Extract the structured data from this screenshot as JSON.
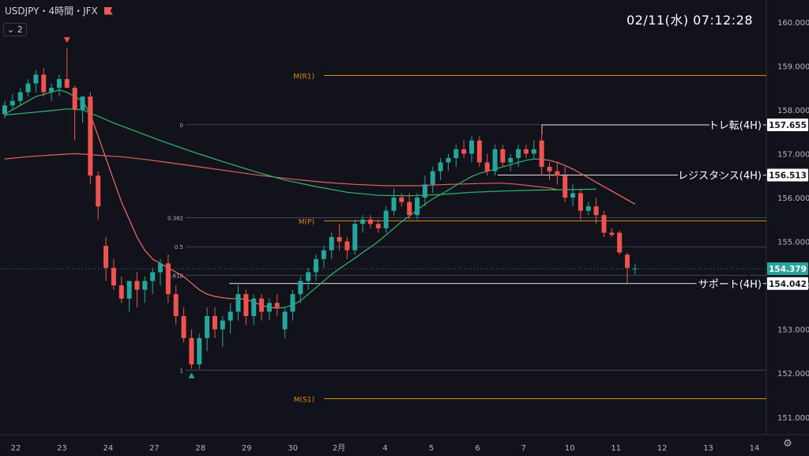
{
  "header": {
    "symbol": "USDJPY・4時間・JFX",
    "indicator_count": "2"
  },
  "clock": {
    "text": "02/11(水)   07:12:28"
  },
  "chart_data": {
    "type": "candlestick",
    "ylim": [
      150.6,
      160.5
    ],
    "y_ticks": [
      151.0,
      152.0,
      153.0,
      154.0,
      155.0,
      156.0,
      157.0,
      158.0,
      159.0,
      160.0
    ],
    "x_labels": [
      "22",
      "23",
      "24",
      "27",
      "28",
      "29",
      "30",
      "2月",
      "4",
      "5",
      "6",
      "7",
      "10",
      "11",
      "12",
      "13",
      "14"
    ],
    "candles": [
      [
        157.9,
        158.2,
        157.8,
        158.1
      ],
      [
        158.1,
        158.35,
        158.0,
        158.2
      ],
      [
        158.2,
        158.5,
        158.1,
        158.4
      ],
      [
        158.4,
        158.7,
        158.3,
        158.6
      ],
      [
        158.6,
        158.9,
        158.4,
        158.8
      ],
      [
        158.8,
        158.95,
        158.3,
        158.4
      ],
      [
        158.4,
        158.6,
        158.2,
        158.5
      ],
      [
        158.5,
        158.8,
        158.3,
        158.7
      ],
      [
        158.7,
        159.4,
        158.5,
        158.5
      ],
      [
        158.5,
        158.55,
        157.3,
        158.0
      ],
      [
        158.0,
        158.3,
        157.7,
        158.3
      ],
      [
        158.3,
        158.4,
        156.3,
        156.5
      ],
      [
        156.5,
        156.6,
        155.5,
        155.8
      ],
      [
        154.9,
        155.1,
        154.1,
        154.4
      ],
      [
        154.4,
        154.6,
        153.9,
        154.0
      ],
      [
        154.0,
        154.2,
        153.6,
        153.7
      ],
      [
        153.7,
        154.1,
        153.4,
        154.1
      ],
      [
        154.1,
        154.3,
        153.5,
        153.9
      ],
      [
        153.9,
        154.2,
        153.6,
        154.1
      ],
      [
        154.1,
        154.4,
        153.8,
        154.3
      ],
      [
        154.3,
        154.6,
        154.0,
        154.5
      ],
      [
        154.5,
        154.7,
        153.6,
        153.8
      ],
      [
        153.8,
        154.0,
        153.1,
        153.3
      ],
      [
        153.3,
        153.5,
        152.7,
        152.8
      ],
      [
        152.8,
        153.0,
        152.1,
        152.2
      ],
      [
        152.2,
        152.9,
        152.1,
        152.8
      ],
      [
        152.8,
        153.5,
        152.5,
        153.3
      ],
      [
        153.3,
        153.5,
        152.8,
        153.0
      ],
      [
        153.0,
        153.3,
        152.6,
        153.2
      ],
      [
        153.2,
        153.6,
        152.9,
        153.4
      ],
      [
        153.4,
        154.0,
        153.2,
        153.8
      ],
      [
        153.8,
        153.9,
        153.1,
        153.3
      ],
      [
        153.3,
        153.8,
        153.1,
        153.7
      ],
      [
        153.7,
        153.8,
        153.2,
        153.4
      ],
      [
        153.4,
        153.7,
        153.2,
        153.6
      ],
      [
        153.6,
        153.8,
        153.3,
        153.5
      ],
      [
        153.0,
        153.5,
        152.8,
        153.4
      ],
      [
        153.4,
        153.9,
        153.2,
        153.8
      ],
      [
        153.8,
        154.2,
        153.6,
        154.1
      ],
      [
        154.1,
        154.4,
        153.9,
        154.3
      ],
      [
        154.3,
        154.7,
        154.1,
        154.6
      ],
      [
        154.6,
        154.9,
        154.4,
        154.8
      ],
      [
        154.8,
        155.2,
        154.6,
        155.1
      ],
      [
        155.1,
        155.4,
        154.8,
        155.0
      ],
      [
        155.0,
        155.1,
        154.6,
        154.8
      ],
      [
        154.8,
        155.5,
        154.7,
        155.4
      ],
      [
        155.4,
        155.6,
        155.2,
        155.5
      ],
      [
        155.5,
        155.6,
        155.3,
        155.4
      ],
      [
        155.4,
        155.5,
        155.2,
        155.3
      ],
      [
        155.3,
        155.8,
        155.2,
        155.7
      ],
      [
        155.7,
        156.2,
        155.6,
        156.0
      ],
      [
        156.0,
        156.1,
        155.8,
        155.9
      ],
      [
        155.9,
        156.1,
        155.5,
        155.6
      ],
      [
        155.6,
        156.1,
        155.5,
        156.0
      ],
      [
        156.0,
        156.5,
        155.8,
        156.3
      ],
      [
        156.3,
        156.7,
        156.1,
        156.6
      ],
      [
        156.6,
        156.9,
        156.4,
        156.8
      ],
      [
        156.8,
        157.0,
        156.6,
        156.9
      ],
      [
        156.9,
        157.2,
        156.7,
        157.1
      ],
      [
        157.1,
        157.3,
        156.9,
        157.0
      ],
      [
        157.0,
        157.4,
        156.8,
        157.3
      ],
      [
        157.3,
        157.4,
        156.7,
        156.8
      ],
      [
        156.8,
        157.0,
        156.5,
        156.6
      ],
      [
        156.6,
        157.2,
        156.5,
        157.1
      ],
      [
        157.1,
        157.2,
        156.7,
        156.8
      ],
      [
        156.8,
        157.0,
        156.6,
        156.9
      ],
      [
        156.9,
        157.2,
        156.7,
        157.1
      ],
      [
        157.1,
        157.2,
        156.9,
        157.0
      ],
      [
        157.0,
        157.3,
        156.9,
        157.1
      ],
      [
        157.3,
        157.6,
        156.5,
        156.7
      ],
      [
        156.7,
        156.8,
        156.4,
        156.6
      ],
      [
        156.6,
        156.8,
        156.3,
        156.5
      ],
      [
        156.5,
        156.7,
        155.9,
        156.0
      ],
      [
        156.0,
        156.3,
        155.8,
        156.1
      ],
      [
        156.1,
        156.2,
        155.5,
        155.7
      ],
      [
        155.7,
        155.9,
        155.6,
        155.8
      ],
      [
        155.8,
        156.0,
        155.4,
        155.6
      ],
      [
        155.6,
        155.7,
        155.1,
        155.2
      ],
      [
        155.2,
        155.3,
        155.1,
        155.15
      ],
      [
        155.2,
        155.25,
        154.7,
        154.75
      ],
      [
        154.7,
        154.75,
        154.05,
        154.4
      ],
      [
        154.38,
        154.5,
        154.25,
        154.38
      ]
    ],
    "ma_short": [
      [
        0,
        157.9
      ],
      [
        1,
        158.0
      ],
      [
        2,
        158.1
      ],
      [
        3,
        158.2
      ],
      [
        4,
        158.3
      ],
      [
        5,
        158.35
      ],
      [
        6,
        158.4
      ],
      [
        7,
        158.45
      ],
      [
        8,
        158.4
      ],
      [
        9,
        158.3
      ],
      [
        10,
        158.2
      ],
      [
        11,
        157.9
      ],
      [
        12,
        157.4
      ],
      [
        13,
        156.9
      ],
      [
        14,
        156.4
      ],
      [
        15,
        155.9
      ],
      [
        16,
        155.5
      ],
      [
        17,
        155.1
      ],
      [
        18,
        154.8
      ],
      [
        19,
        154.6
      ],
      [
        20,
        154.5
      ],
      [
        21,
        154.4
      ],
      [
        22,
        154.3
      ],
      [
        23,
        154.2
      ],
      [
        24,
        154.05
      ],
      [
        25,
        153.9
      ],
      [
        26,
        153.8
      ],
      [
        27,
        153.75
      ],
      [
        28,
        153.72
      ],
      [
        29,
        153.7
      ],
      [
        30,
        153.7
      ],
      [
        31,
        153.68
      ],
      [
        32,
        153.62
      ],
      [
        33,
        153.55
      ],
      [
        34,
        153.5
      ],
      [
        35,
        153.48
      ],
      [
        36,
        153.5
      ],
      [
        37,
        153.55
      ],
      [
        38,
        153.65
      ],
      [
        39,
        153.8
      ],
      [
        40,
        153.95
      ],
      [
        41,
        154.1
      ],
      [
        42,
        154.25
      ],
      [
        43,
        154.38
      ],
      [
        44,
        154.5
      ],
      [
        45,
        154.62
      ],
      [
        46,
        154.75
      ],
      [
        47,
        154.87
      ],
      [
        48,
        155.0
      ],
      [
        49,
        155.15
      ],
      [
        50,
        155.3
      ],
      [
        51,
        155.45
      ],
      [
        52,
        155.58
      ],
      [
        53,
        155.72
      ],
      [
        54,
        155.85
      ],
      [
        55,
        155.97
      ],
      [
        56,
        156.07
      ],
      [
        57,
        156.17
      ],
      [
        58,
        156.28
      ],
      [
        59,
        156.38
      ],
      [
        60,
        156.48
      ],
      [
        61,
        156.55
      ],
      [
        62,
        156.6
      ],
      [
        63,
        156.65
      ],
      [
        64,
        156.7
      ],
      [
        65,
        156.75
      ],
      [
        66,
        156.8
      ],
      [
        67,
        156.85
      ],
      [
        68,
        156.88
      ],
      [
        69,
        156.87
      ],
      [
        70,
        156.85
      ],
      [
        71,
        156.8
      ],
      [
        72,
        156.73
      ],
      [
        73,
        156.65
      ],
      [
        74,
        156.55
      ],
      [
        75,
        156.45
      ],
      [
        76,
        156.35
      ],
      [
        77,
        156.25
      ],
      [
        78,
        156.15
      ],
      [
        79,
        156.05
      ],
      [
        80,
        155.95
      ],
      [
        81,
        155.85
      ]
    ],
    "ma_mid": [
      [
        0,
        157.88
      ],
      [
        3,
        157.93
      ],
      [
        6,
        157.98
      ],
      [
        8,
        158.02
      ],
      [
        10,
        158.0
      ],
      [
        12,
        157.85
      ],
      [
        14,
        157.7
      ],
      [
        17,
        157.5
      ],
      [
        20,
        157.3
      ],
      [
        24,
        157.05
      ],
      [
        28,
        156.82
      ],
      [
        32,
        156.6
      ],
      [
        36,
        156.4
      ],
      [
        40,
        156.25
      ],
      [
        44,
        156.12
      ],
      [
        48,
        156.05
      ],
      [
        52,
        156.04
      ],
      [
        56,
        156.07
      ],
      [
        60,
        156.12
      ],
      [
        64,
        156.15
      ],
      [
        68,
        156.17
      ],
      [
        72,
        156.18
      ],
      [
        76,
        156.19
      ]
    ],
    "ma_long": [
      [
        0,
        156.88
      ],
      [
        3,
        156.93
      ],
      [
        6,
        156.97
      ],
      [
        9,
        157.0
      ],
      [
        11,
        156.98
      ],
      [
        13,
        156.95
      ],
      [
        15,
        156.93
      ],
      [
        18,
        156.87
      ],
      [
        21,
        156.8
      ],
      [
        25,
        156.7
      ],
      [
        29,
        156.6
      ],
      [
        33,
        156.5
      ],
      [
        37,
        156.42
      ],
      [
        41,
        156.35
      ],
      [
        45,
        156.3
      ],
      [
        49,
        156.27
      ],
      [
        53,
        156.27
      ],
      [
        57,
        156.3
      ],
      [
        61,
        156.32
      ],
      [
        64,
        156.33
      ],
      [
        66,
        156.3
      ],
      [
        68,
        156.26
      ],
      [
        70,
        156.22
      ],
      [
        71,
        156.18
      ]
    ],
    "hlines": [
      {
        "label": "M(R1)",
        "value": 158.78,
        "color": "#d68a0c"
      },
      {
        "label": "M(P)",
        "value": 155.47,
        "color": "#d68a0c"
      },
      {
        "label": "M(S1)",
        "value": 151.42,
        "color": "#d68a0c"
      }
    ],
    "fib": [
      {
        "label": "0",
        "value": 157.66
      },
      {
        "label": "0.382",
        "value": 155.54
      },
      {
        "label": "0.5",
        "value": 154.88
      },
      {
        "label": "0.618",
        "value": 154.23
      },
      {
        "label": "1",
        "value": 152.07
      }
    ],
    "sr_levels": [
      {
        "label": "トレ転(4H)",
        "value": 157.655,
        "price": "157.655"
      },
      {
        "label": "レジスタンス(4H)",
        "value": 156.513,
        "price": "156.513"
      },
      {
        "label": "サポート(4H)",
        "value": 154.042,
        "price": "154.042"
      }
    ],
    "current_price": {
      "value": 154.379,
      "text": "154.379"
    },
    "markers": [
      {
        "type": "down",
        "candle": 8
      },
      {
        "type": "up",
        "candle": 24
      }
    ]
  }
}
